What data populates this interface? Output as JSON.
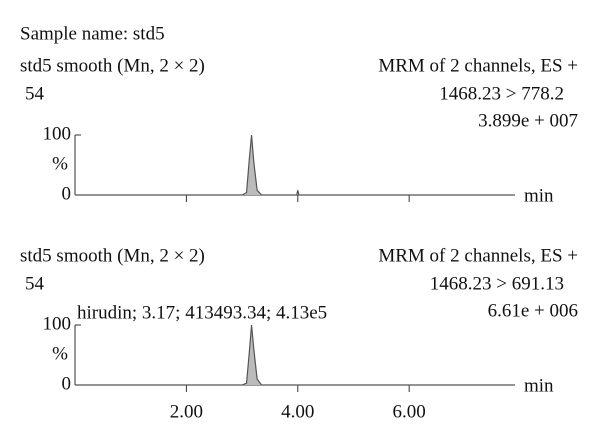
{
  "header": "Sample name: std5",
  "chart_data": [
    {
      "type": "line",
      "title": "std5 smooth (Mn, 2 × 2)",
      "right_title": "MRM of 2 channels, ES +",
      "scan": "54",
      "transition": "1468.23 > 778.2",
      "intensity": "3.899e + 007",
      "ylabel": "%",
      "xlabel": "min",
      "color": "#555555",
      "x": [
        0,
        3.0,
        3.08,
        3.13,
        3.17,
        3.21,
        3.27,
        3.35,
        3.98,
        4.0,
        4.02,
        7.9
      ],
      "values": [
        0,
        0,
        4,
        60,
        100,
        55,
        8,
        0,
        0,
        8,
        0,
        0
      ],
      "xlim": [
        0,
        7.9
      ],
      "ylim": [
        0,
        100
      ],
      "yticks": [
        0,
        100
      ]
    },
    {
      "type": "line",
      "title": "std5 smooth (Mn, 2 × 2)",
      "right_title": "MRM of 2 channels, ES +",
      "scan": "54",
      "transition": "1468.23 > 691.13",
      "intensity": "6.61e + 006",
      "annotation": "hirudin; 3.17; 413493.34; 4.13e5",
      "ylabel": "%",
      "xlabel": "min",
      "color": "#555555",
      "x": [
        0,
        3.0,
        3.08,
        3.13,
        3.17,
        3.21,
        3.27,
        3.35,
        7.9
      ],
      "values": [
        0,
        0,
        3,
        55,
        100,
        60,
        10,
        0,
        0
      ],
      "xlim": [
        0,
        7.9
      ],
      "ylim": [
        0,
        100
      ],
      "yticks": [
        0,
        100
      ],
      "xticks": [
        {
          "value": 2,
          "label": "2.00"
        },
        {
          "value": 4,
          "label": "4.00"
        },
        {
          "value": 6,
          "label": "6.00"
        }
      ]
    }
  ]
}
